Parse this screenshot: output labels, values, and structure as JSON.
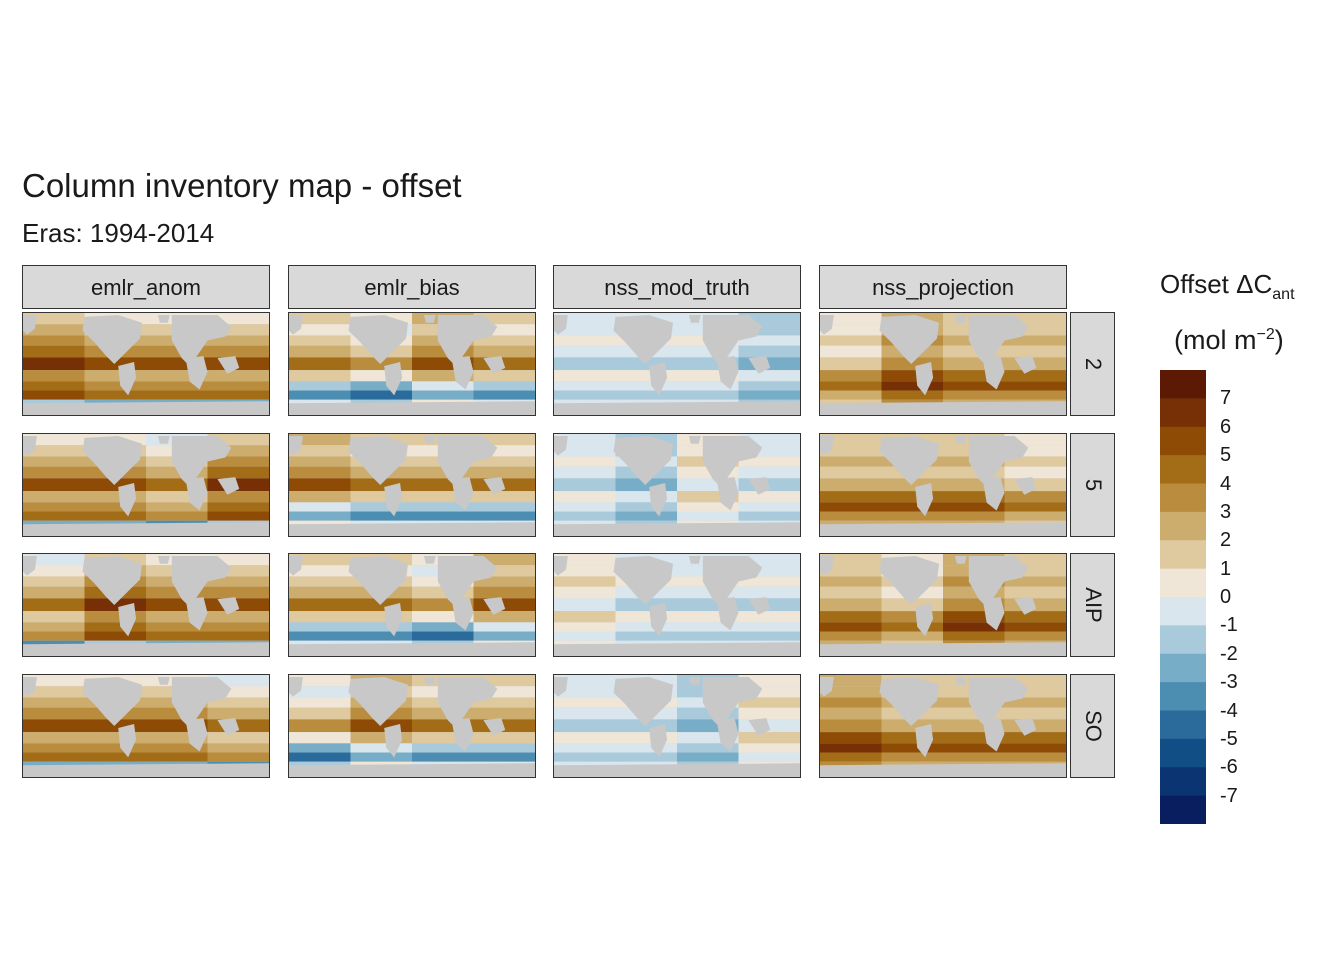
{
  "title": "Column inventory map - offset",
  "subtitle": "Eras: 1994-2014",
  "columns": [
    "emlr_anom",
    "emlr_bias",
    "nss_mod_truth",
    "nss_projection"
  ],
  "rows": [
    "2",
    "5",
    "AIP",
    "SO"
  ],
  "legend": {
    "title_main": "Offset ΔC",
    "title_sub": "ant",
    "unit_open": "(mol m",
    "unit_sup": "−2",
    "unit_close": ")",
    "ticks": [
      "7",
      "6",
      "5",
      "4",
      "3",
      "2",
      "1",
      "0",
      "-1",
      "-2",
      "-3",
      "-4",
      "-5",
      "-6",
      "-7"
    ],
    "colors": [
      "#5c1a05",
      "#773006",
      "#8d4b05",
      "#a36c17",
      "#b98c3e",
      "#cdad6e",
      "#dfc99f",
      "#efe6d8",
      "#d9e6ee",
      "#a9cadb",
      "#78adc7",
      "#4c8db2",
      "#2a6b9b",
      "#124e86",
      "#0a3572",
      "#081e5e"
    ]
  },
  "colors": {
    "land": "#c8c8c8",
    "strip": "#d9d9d9",
    "border": "#333333"
  }
}
